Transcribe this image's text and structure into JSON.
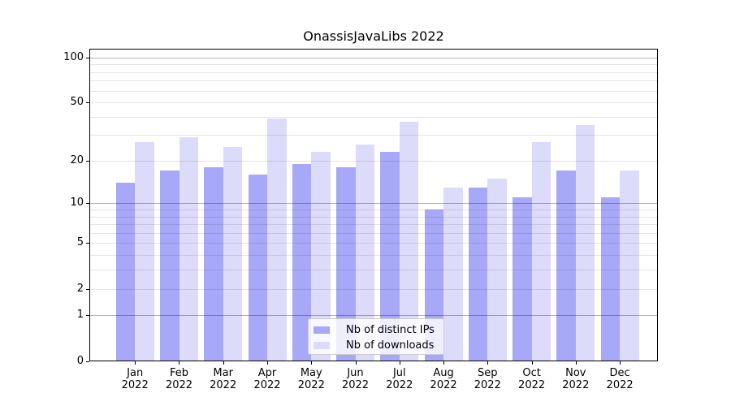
{
  "chart_data": {
    "type": "bar",
    "title": "OnassisJavaLibs 2022",
    "categories": [
      "Jan",
      "Feb",
      "Mar",
      "Apr",
      "May",
      "Jun",
      "Jul",
      "Aug",
      "Sep",
      "Oct",
      "Nov",
      "Dec"
    ],
    "category_year": "2022",
    "series": [
      {
        "name": "Nb of distinct IPs",
        "color": "#a8a8f8",
        "values": [
          14,
          17,
          18,
          16,
          19,
          18,
          23,
          9,
          13,
          11,
          17,
          11
        ]
      },
      {
        "name": "Nb of downloads",
        "color": "#dcdcfa",
        "values": [
          27,
          29,
          25,
          39,
          23,
          26,
          37,
          13,
          15,
          27,
          35,
          17
        ]
      }
    ],
    "xlabel": "",
    "ylabel": "",
    "yscale": "log1p",
    "ylim": [
      0,
      115
    ],
    "yticks": [
      100,
      50,
      20,
      10,
      5,
      2,
      1,
      0
    ],
    "major_gridlines": [
      1,
      10,
      100
    ],
    "minor_gridlines": [
      2,
      3,
      4,
      5,
      6,
      7,
      8,
      9,
      20,
      30,
      40,
      50,
      60,
      70,
      80,
      90
    ],
    "grid": true,
    "legend_position": "lower center",
    "colors": {
      "major_grid": "rgba(0,0,0,0.30)",
      "minor_grid": "rgba(0,0,0,0.10)",
      "axis": "#000000",
      "background": "#ffffff"
    }
  }
}
